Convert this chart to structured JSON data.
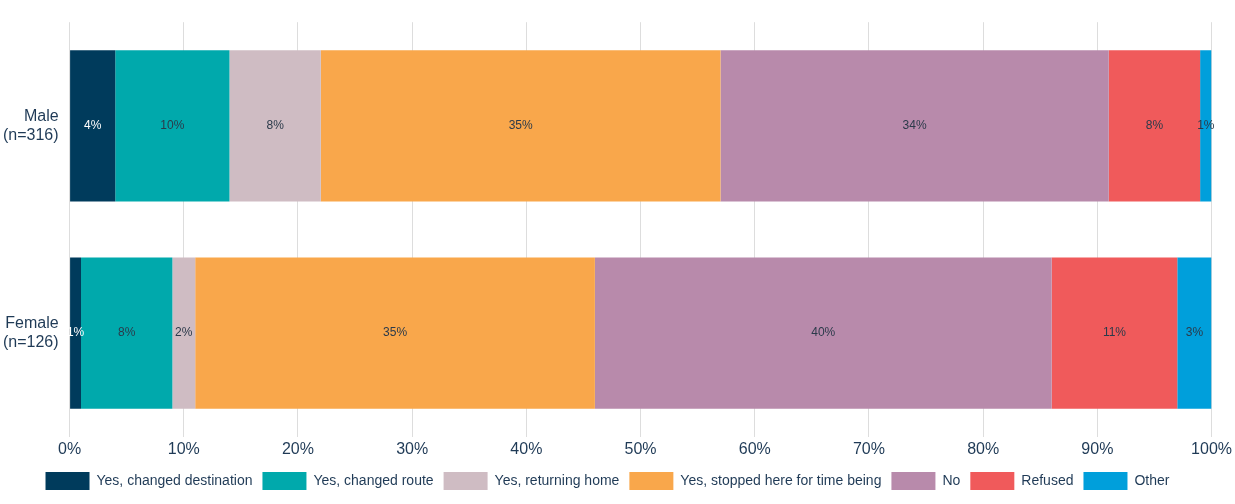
{
  "chart_data": {
    "type": "bar",
    "orientation": "horizontal",
    "stacked": true,
    "categories": [
      "Male\n(n=316)",
      "Female\n(n=126)"
    ],
    "series": [
      {
        "name": "Yes, changed destination",
        "color": "#003b5c",
        "values": [
          4,
          1
        ],
        "value_labels": [
          "4%",
          "1%"
        ]
      },
      {
        "name": "Yes, changed route",
        "color": "#00a9ac",
        "values": [
          10,
          8
        ],
        "value_labels": [
          "10%",
          "8%"
        ]
      },
      {
        "name": "Yes, returning home",
        "color": "#cfbcc3",
        "values": [
          8,
          2
        ],
        "value_labels": [
          "8%",
          "2%"
        ]
      },
      {
        "name": "Yes, stopped here for time being",
        "color": "#f9a74b",
        "values": [
          35,
          35
        ],
        "value_labels": [
          "35%",
          "35%"
        ]
      },
      {
        "name": "No",
        "color": "#b88aab",
        "values": [
          34,
          40
        ],
        "value_labels": [
          "34%",
          "40%"
        ]
      },
      {
        "name": "Refused",
        "color": "#f05a5b",
        "values": [
          8,
          11
        ],
        "value_labels": [
          "8%",
          "11%"
        ]
      },
      {
        "name": "Other",
        "color": "#009fdb",
        "values": [
          1,
          3
        ],
        "value_labels": [
          "1%",
          "3%"
        ]
      }
    ],
    "xlim": [
      0,
      100
    ],
    "xticks": [
      {
        "value": 0,
        "label": "0%"
      },
      {
        "value": 10,
        "label": "10%"
      },
      {
        "value": 20,
        "label": "20%"
      },
      {
        "value": 30,
        "label": "30%"
      },
      {
        "value": 40,
        "label": "40%"
      },
      {
        "value": 50,
        "label": "50%"
      },
      {
        "value": 60,
        "label": "60%"
      },
      {
        "value": 70,
        "label": "70%"
      },
      {
        "value": 80,
        "label": "80%"
      },
      {
        "value": 90,
        "label": "90%"
      },
      {
        "value": 100,
        "label": "100%"
      }
    ],
    "grid": "x",
    "legend": "bottom"
  }
}
